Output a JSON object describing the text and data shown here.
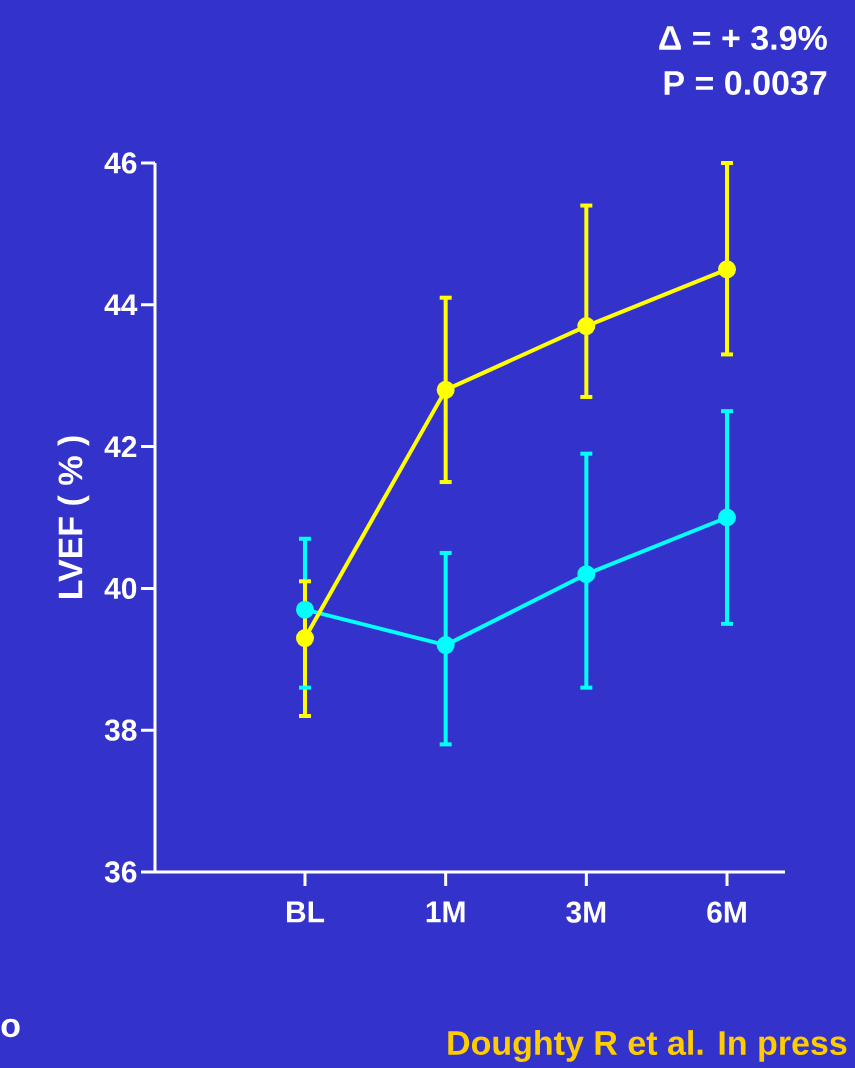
{
  "chart_data": {
    "type": "line",
    "ylabel": "LVEF ( % )",
    "categories": [
      "BL",
      "1M",
      "3M",
      "6M"
    ],
    "ylim": [
      36,
      46
    ],
    "yticks": [
      36,
      38,
      40,
      42,
      44,
      46
    ],
    "marker": "circle",
    "line_style": "solid",
    "series": [
      {
        "color": "#00ffff",
        "values": [
          39.7,
          39.2,
          40.2,
          41.0
        ],
        "errors": [
          [
            38.6,
            40.7
          ],
          [
            37.8,
            40.5
          ],
          [
            38.6,
            41.9
          ],
          [
            39.5,
            42.5
          ]
        ]
      },
      {
        "color": "#ffff00",
        "values": [
          39.3,
          42.8,
          43.7,
          44.5
        ],
        "errors": [
          [
            38.2,
            40.1
          ],
          [
            41.5,
            44.1
          ],
          [
            42.7,
            45.4
          ],
          [
            43.3,
            46.0
          ]
        ]
      }
    ],
    "annotations": [
      "Δ = + 3.9%",
      "P = 0.0037",
      "o",
      "Doughty R et al. In press"
    ]
  }
}
